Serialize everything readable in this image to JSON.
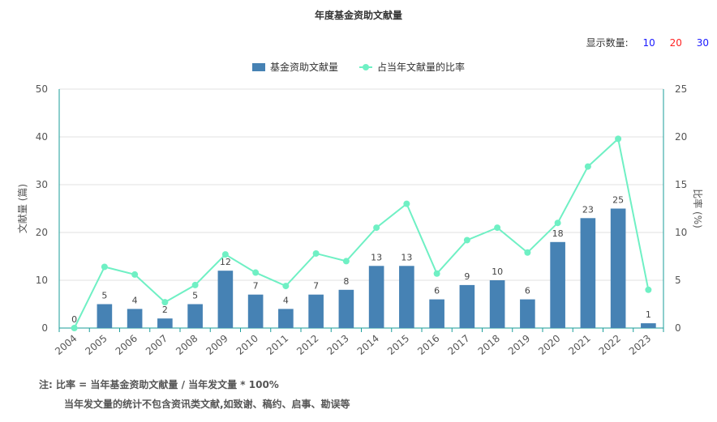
{
  "header": {
    "title": "年度基金资助文献量",
    "show_count_label": "显示数量:",
    "show_count_options": [
      "10",
      "20",
      "30"
    ]
  },
  "legend": {
    "bar_label": "基金资助文献量",
    "line_label": "占当年文献量的比率"
  },
  "notes": {
    "line1": "注:  比率 = 当年基金资助文献量 / 当年发文量 * 100%",
    "line2": "当年发文量的统计不包含资讯类文献,如致谢、稿约、启事、勘误等"
  },
  "chart_data": {
    "type": "bar",
    "title": "年度基金资助文献量",
    "categories": [
      "2004",
      "2005",
      "2006",
      "2007",
      "2008",
      "2009",
      "2010",
      "2011",
      "2012",
      "2013",
      "2014",
      "2015",
      "2016",
      "2017",
      "2018",
      "2019",
      "2020",
      "2021",
      "2022",
      "2023"
    ],
    "series": [
      {
        "name": "基金资助文献量",
        "type": "bar",
        "axis": "left",
        "color": "#4682b4",
        "values": [
          0,
          5,
          4,
          2,
          5,
          12,
          7,
          4,
          7,
          8,
          13,
          13,
          6,
          9,
          10,
          6,
          18,
          23,
          25,
          1
        ]
      },
      {
        "name": "占当年文献量的比率",
        "type": "line",
        "axis": "right",
        "color": "#6ff0c4",
        "values": [
          0,
          6.4,
          5.6,
          2.7,
          4.5,
          7.7,
          5.8,
          4.4,
          7.8,
          7.0,
          10.5,
          13.0,
          5.7,
          9.2,
          10.5,
          7.9,
          11.0,
          16.9,
          19.8,
          4.0
        ]
      }
    ],
    "ylabel_left": "文献量 (篇)",
    "ylabel_right": "比率 (%)",
    "ylim_left": [
      0,
      50
    ],
    "ylim_right": [
      0,
      25
    ],
    "yticks_left": [
      0,
      10,
      20,
      30,
      40,
      50
    ],
    "yticks_right": [
      0,
      5,
      10,
      15,
      20,
      25
    ],
    "grid": true,
    "legend_position": "top-center",
    "data_labels": true
  }
}
